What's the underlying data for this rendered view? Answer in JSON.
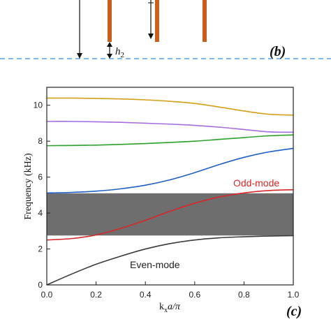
{
  "panel_b": {
    "label": "(b)",
    "h_label": "h",
    "h_subscript": "2",
    "rod_color": "#c8601a",
    "dashed_line_color": "#3a8fd6"
  },
  "panel_c": {
    "label": "(c)",
    "annotations": {
      "odd_mode": "Odd-mode",
      "even_mode": "Even-mode"
    }
  },
  "chart_data": {
    "type": "line",
    "xlabel_main": "k",
    "xlabel_sub": "x",
    "xlabel_rest": "a/π",
    "ylabel": "Frequency (kHz)",
    "xlim": [
      0.0,
      1.0
    ],
    "ylim": [
      0,
      11
    ],
    "xticks": [
      "0.0",
      "0.2",
      "0.4",
      "0.6",
      "0.8",
      "1.0"
    ],
    "yticks": [
      "0",
      "2",
      "4",
      "6",
      "8",
      "10"
    ],
    "bandgap": {
      "ymin": 2.75,
      "ymax": 5.1,
      "color": "#6e6e6e"
    },
    "x": [
      0.0,
      0.1,
      0.2,
      0.3,
      0.4,
      0.5,
      0.6,
      0.7,
      0.8,
      0.9,
      1.0
    ],
    "series": [
      {
        "color": "#3a3a3a",
        "values": [
          0.0,
          0.6,
          1.15,
          1.6,
          2.0,
          2.3,
          2.5,
          2.62,
          2.68,
          2.72,
          2.74
        ]
      },
      {
        "color": "#d62728",
        "values": [
          2.5,
          2.58,
          2.78,
          3.15,
          3.6,
          4.1,
          4.55,
          4.9,
          5.12,
          5.25,
          5.3
        ]
      },
      {
        "color": "#1f5fc7",
        "values": [
          5.12,
          5.15,
          5.22,
          5.35,
          5.55,
          5.85,
          6.25,
          6.7,
          7.1,
          7.4,
          7.6
        ]
      },
      {
        "color": "#2ca02c",
        "values": [
          7.75,
          7.76,
          7.78,
          7.82,
          7.87,
          7.93,
          8.0,
          8.1,
          8.2,
          8.3,
          8.35
        ]
      },
      {
        "color": "#a56de0",
        "values": [
          9.1,
          9.1,
          9.08,
          9.05,
          9.0,
          8.95,
          8.88,
          8.78,
          8.65,
          8.52,
          8.5
        ]
      },
      {
        "color": "#d4a017",
        "values": [
          10.4,
          10.4,
          10.38,
          10.35,
          10.3,
          10.22,
          10.1,
          9.9,
          9.68,
          9.5,
          9.45
        ]
      }
    ]
  }
}
